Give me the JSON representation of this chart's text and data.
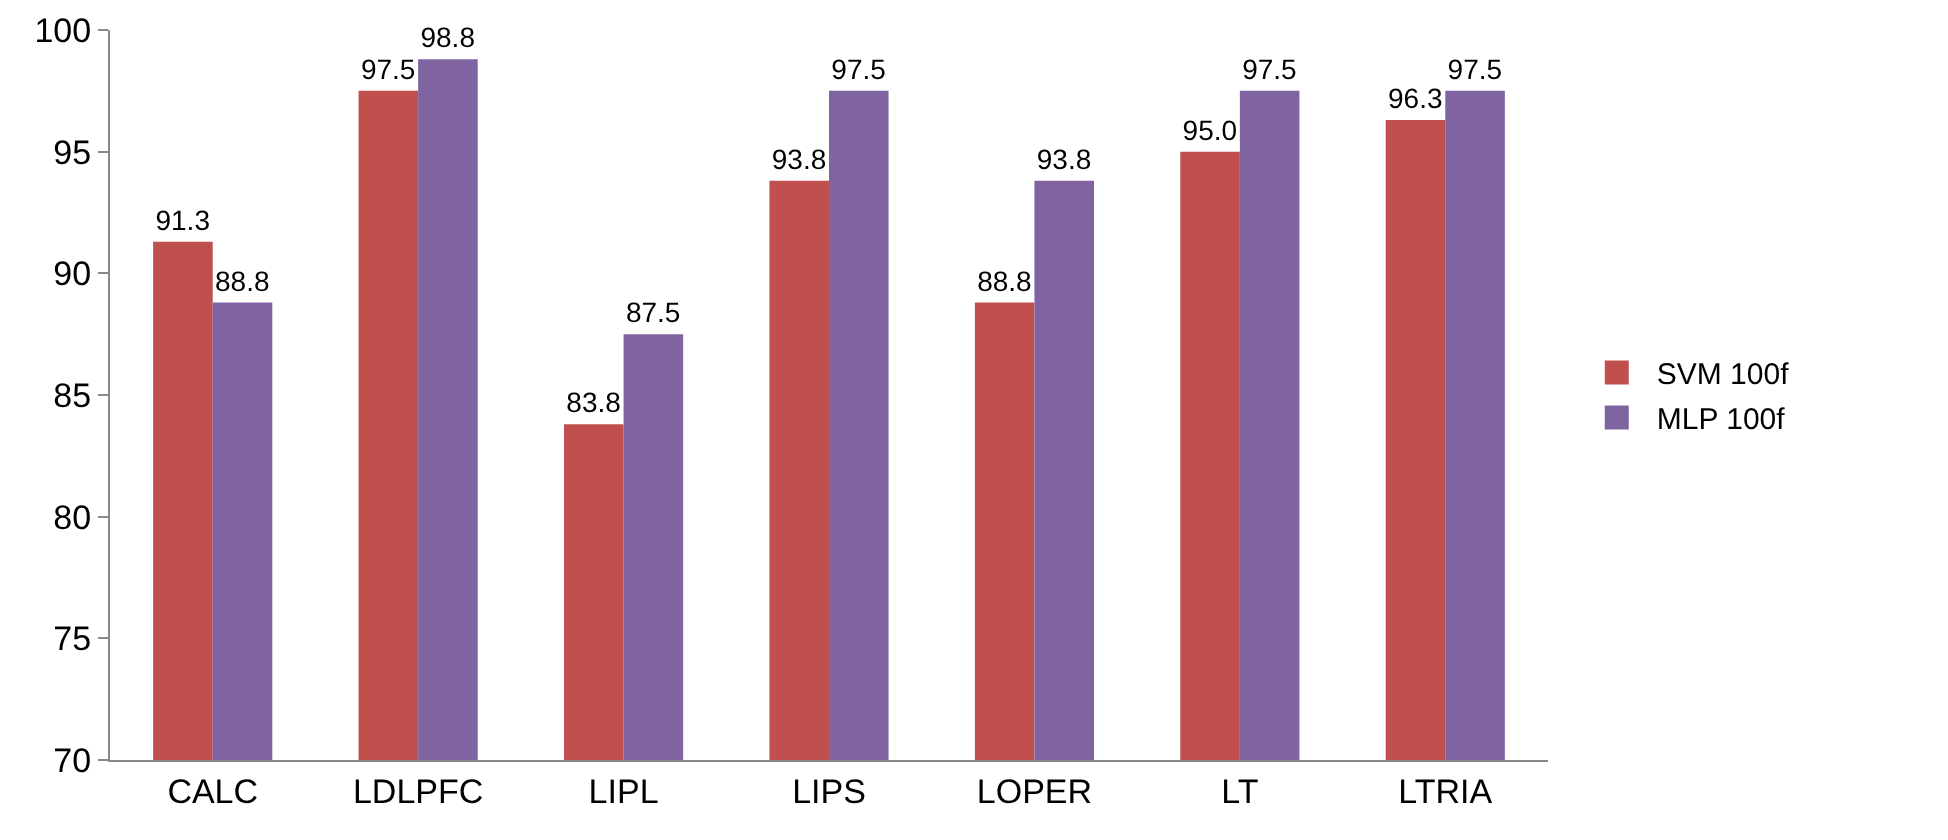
{
  "chart_data": {
    "type": "bar",
    "categories": [
      "CALC",
      "LDLPFC",
      "LIPL",
      "LIPS",
      "LOPER",
      "LT",
      "LTRIA"
    ],
    "series": [
      {
        "name": "SVM 100f",
        "color": "#c0504d",
        "values": [
          91.3,
          97.5,
          83.8,
          93.8,
          88.8,
          95.0,
          96.3
        ],
        "value_labels": [
          "91.3",
          "97.5",
          "83.8",
          "93.8",
          "88.8",
          "95.0",
          "96.3"
        ]
      },
      {
        "name": "MLP 100f",
        "color": "#8064a2",
        "values": [
          88.8,
          98.8,
          87.5,
          97.5,
          93.8,
          97.5,
          97.5
        ],
        "value_labels": [
          "88.8",
          "98.8",
          "87.5",
          "97.5",
          "93.8",
          "97.5",
          "97.5"
        ]
      }
    ],
    "ylim": [
      70,
      100
    ],
    "yticks": [
      70,
      75,
      80,
      85,
      90,
      95,
      100
    ],
    "grid": false,
    "legend": "right"
  }
}
